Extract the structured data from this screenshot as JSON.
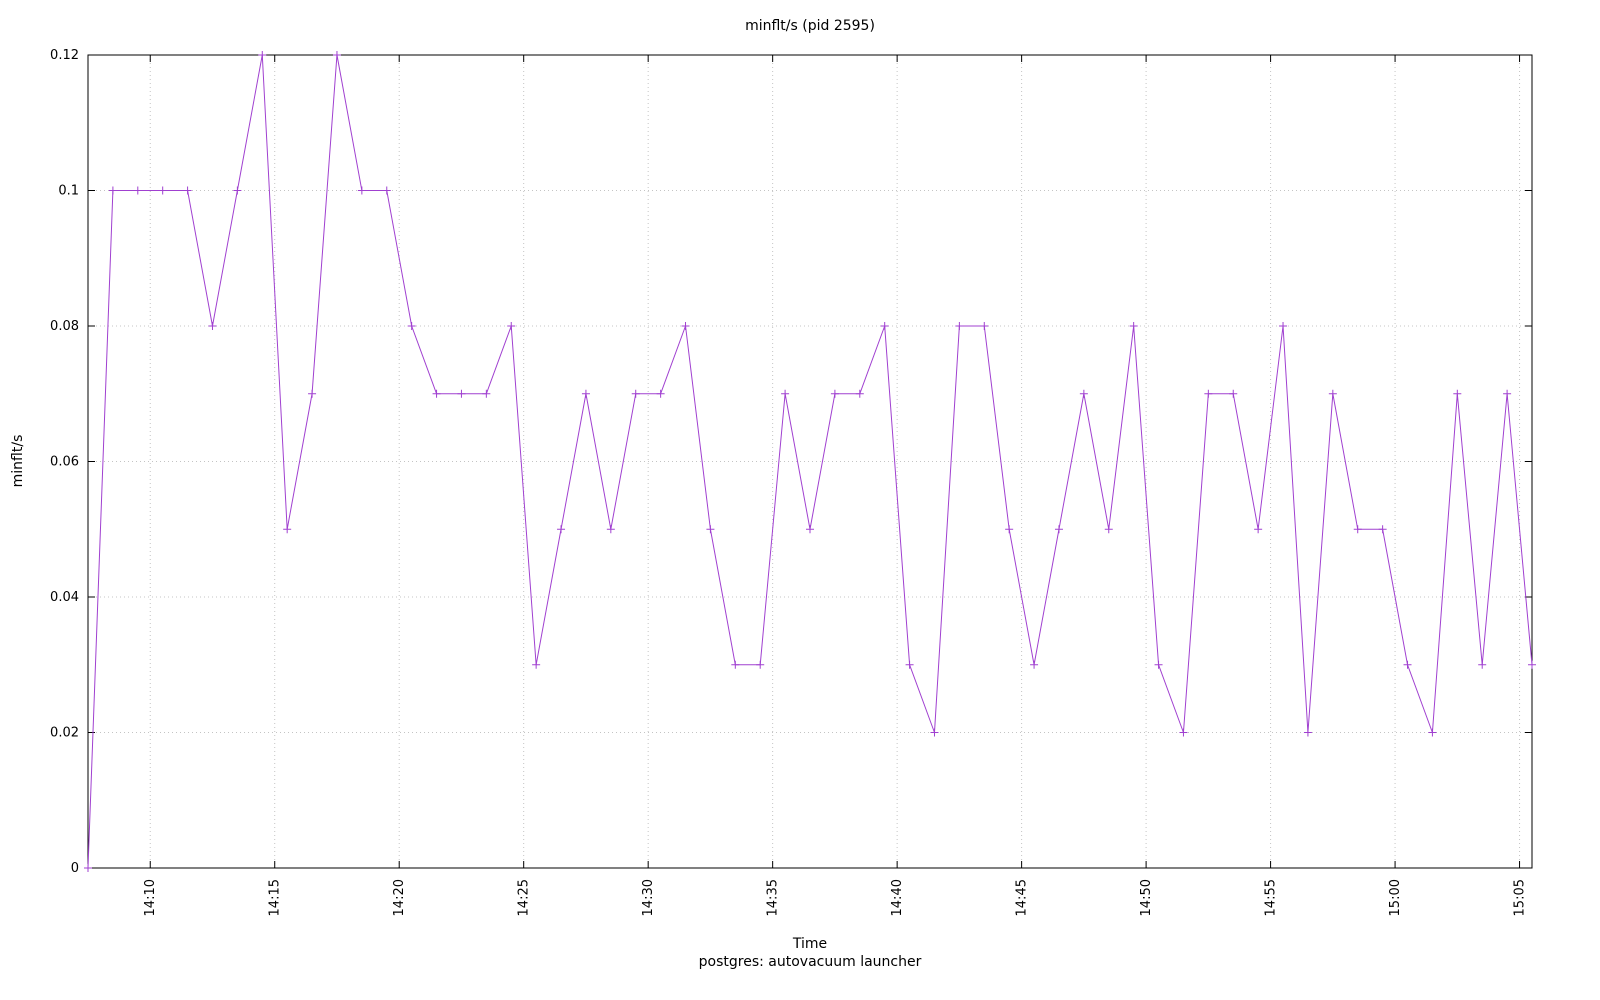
{
  "chart_data": {
    "type": "line",
    "title": "minflt/s (pid 2595)",
    "xlabel": "Time",
    "ylabel": "minflt/s",
    "ylim": [
      0,
      0.12
    ],
    "grid": true,
    "legend_position": "bottom-center",
    "yticks": [
      "0",
      "0.02",
      "0.04",
      "0.06",
      "0.08",
      "0.1",
      "0.12"
    ],
    "xticks": [
      "14:10",
      "14:15",
      "14:20",
      "14:25",
      "14:30",
      "14:35",
      "14:40",
      "14:45",
      "14:50",
      "14:55",
      "15:00",
      "15:05"
    ],
    "series": [
      {
        "name": "postgres: autovacuum launcher",
        "color": "#a040d0",
        "marker": "plus",
        "x": [
          "14:07:30",
          "14:08:30",
          "14:09:30",
          "14:10:30",
          "14:11:30",
          "14:12:30",
          "14:13:30",
          "14:14:30",
          "14:15:30",
          "14:16:30",
          "14:17:30",
          "14:18:30",
          "14:19:30",
          "14:20:30",
          "14:21:30",
          "14:22:30",
          "14:23:30",
          "14:24:30",
          "14:25:30",
          "14:26:30",
          "14:27:30",
          "14:28:30",
          "14:29:30",
          "14:30:30",
          "14:31:30",
          "14:32:30",
          "14:33:30",
          "14:34:30",
          "14:35:30",
          "14:36:30",
          "14:37:30",
          "14:38:30",
          "14:39:30",
          "14:40:30",
          "14:41:30",
          "14:42:30",
          "14:43:30",
          "14:44:30",
          "14:45:30",
          "14:46:30",
          "14:47:30",
          "14:48:30",
          "14:49:30",
          "14:50:30",
          "14:51:30",
          "14:52:30",
          "14:53:30",
          "14:54:30",
          "14:55:30",
          "14:56:30",
          "14:57:30",
          "14:58:30",
          "14:59:30",
          "15:00:30",
          "15:01:30",
          "15:02:30",
          "15:03:30",
          "15:04:30",
          "15:05:30"
        ],
        "values": [
          0,
          0.1,
          0.1,
          0.1,
          0.1,
          0.08,
          0.1,
          0.12,
          0.05,
          0.07,
          0.12,
          0.1,
          0.1,
          0.08,
          0.07,
          0.07,
          0.07,
          0.08,
          0.03,
          0.05,
          0.07,
          0.05,
          0.07,
          0.07,
          0.08,
          0.05,
          0.03,
          0.03,
          0.07,
          0.05,
          0.07,
          0.07,
          0.08,
          0.03,
          0.02,
          0.08,
          0.08,
          0.05,
          0.03,
          0.05,
          0.07,
          0.05,
          0.08,
          0.03,
          0.02,
          0.07,
          0.07,
          0.05,
          0.08,
          0.02,
          0.07,
          0.05,
          0.05,
          0.03,
          0.02,
          0.07,
          0.03,
          0.07,
          0.03
        ]
      }
    ]
  }
}
